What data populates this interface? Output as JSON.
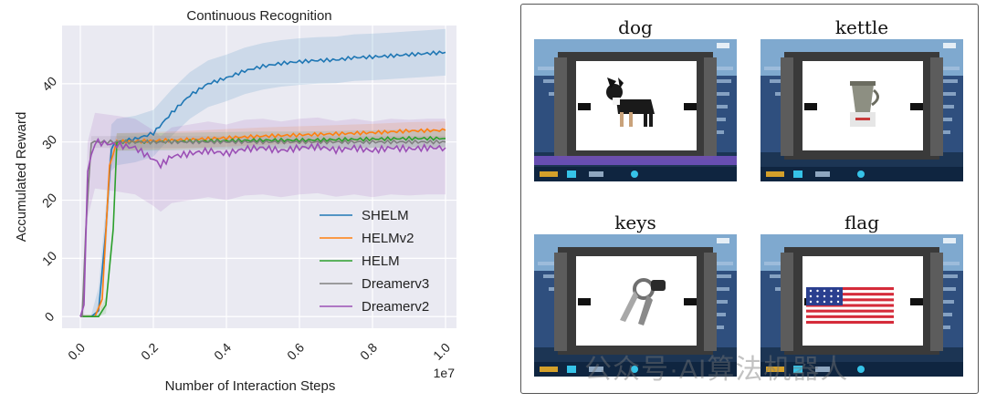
{
  "chart_data": {
    "type": "line",
    "title": "Continuous Recognition",
    "xlabel": "Number of Interaction Steps",
    "ylabel": "Accumulated Reward",
    "x_offset_label": "1e7",
    "xlim": [
      -0.05,
      1.03
    ],
    "ylim": [
      -2,
      50
    ],
    "x_ticks": [
      0.0,
      0.2,
      0.4,
      0.6,
      0.8,
      1.0
    ],
    "x_tick_labels": [
      "0.0",
      "0.2",
      "0.4",
      "0.6",
      "0.8",
      "1.0"
    ],
    "y_ticks": [
      0,
      10,
      20,
      30,
      40
    ],
    "y_tick_labels": [
      "0",
      "10",
      "20",
      "30",
      "40"
    ],
    "grid": true,
    "legend_position": "lower-right",
    "series": [
      {
        "name": "SHELM",
        "color": "#1f77b4",
        "x": [
          0.0,
          0.03,
          0.05,
          0.07,
          0.085,
          0.1,
          0.15,
          0.2,
          0.25,
          0.3,
          0.35,
          0.4,
          0.45,
          0.5,
          0.55,
          0.6,
          0.65,
          0.7,
          0.75,
          0.8,
          0.85,
          0.9,
          0.95,
          1.0
        ],
        "y": [
          0,
          0,
          1,
          15,
          29,
          30,
          30.5,
          31.5,
          35,
          38,
          40,
          41,
          42.2,
          43,
          43.5,
          43.8,
          44,
          44.1,
          44.5,
          44.6,
          44.8,
          45,
          45.2,
          45.4
        ],
        "band": 4
      },
      {
        "name": "HELMv2",
        "color": "#ff7f0e",
        "x": [
          0.0,
          0.04,
          0.06,
          0.08,
          0.1,
          0.2,
          0.3,
          0.4,
          0.5,
          0.6,
          0.7,
          0.8,
          0.9,
          1.0
        ],
        "y": [
          0,
          0,
          3,
          26,
          30,
          30.2,
          30.4,
          30.7,
          31,
          31.2,
          31.4,
          31.6,
          31.9,
          32
        ],
        "band": 1.5
      },
      {
        "name": "HELM",
        "color": "#2ca02c",
        "x": [
          0.0,
          0.05,
          0.07,
          0.09,
          0.1,
          0.2,
          0.3,
          0.4,
          0.5,
          0.6,
          0.7,
          0.8,
          0.9,
          1.0
        ],
        "y": [
          0,
          0,
          2,
          15,
          30,
          30,
          30.1,
          30.2,
          30.3,
          30.3,
          30.4,
          30.5,
          30.6,
          30.6
        ],
        "band": 1.5
      },
      {
        "name": "Dreamerv3",
        "color": "#7f7f7f",
        "x": [
          0.0,
          0.005,
          0.015,
          0.03,
          0.1,
          0.2,
          0.3,
          0.4,
          0.5,
          0.6,
          0.7,
          0.8,
          0.9,
          1.0
        ],
        "y": [
          0,
          0,
          15,
          30,
          30,
          30,
          30,
          30,
          30,
          30,
          30,
          30,
          30,
          30
        ],
        "band": 1
      },
      {
        "name": "Dreamerv2",
        "color": "#9b4fb5",
        "x": [
          0.0,
          0.01,
          0.02,
          0.04,
          0.1,
          0.15,
          0.2,
          0.22,
          0.25,
          0.3,
          0.35,
          0.4,
          0.45,
          0.5,
          0.55,
          0.6,
          0.65,
          0.7,
          0.75,
          0.8,
          0.85,
          0.9,
          0.95,
          1.0
        ],
        "y": [
          0,
          2,
          25,
          30,
          29.5,
          29,
          27,
          26,
          27.5,
          28,
          28.5,
          28,
          28.8,
          29,
          28.5,
          29,
          29.2,
          28.6,
          29,
          28.5,
          29,
          28.8,
          29,
          29
        ],
        "band": 5
      }
    ]
  },
  "panel": {
    "images": [
      {
        "label": "dog",
        "object": "dog-photo"
      },
      {
        "label": "kettle",
        "object": "kettle-photo"
      },
      {
        "label": "keys",
        "object": "keys-photo"
      },
      {
        "label": "flag",
        "object": "flag-photo"
      }
    ]
  },
  "watermark_text": "公众号·AI算法机器人"
}
